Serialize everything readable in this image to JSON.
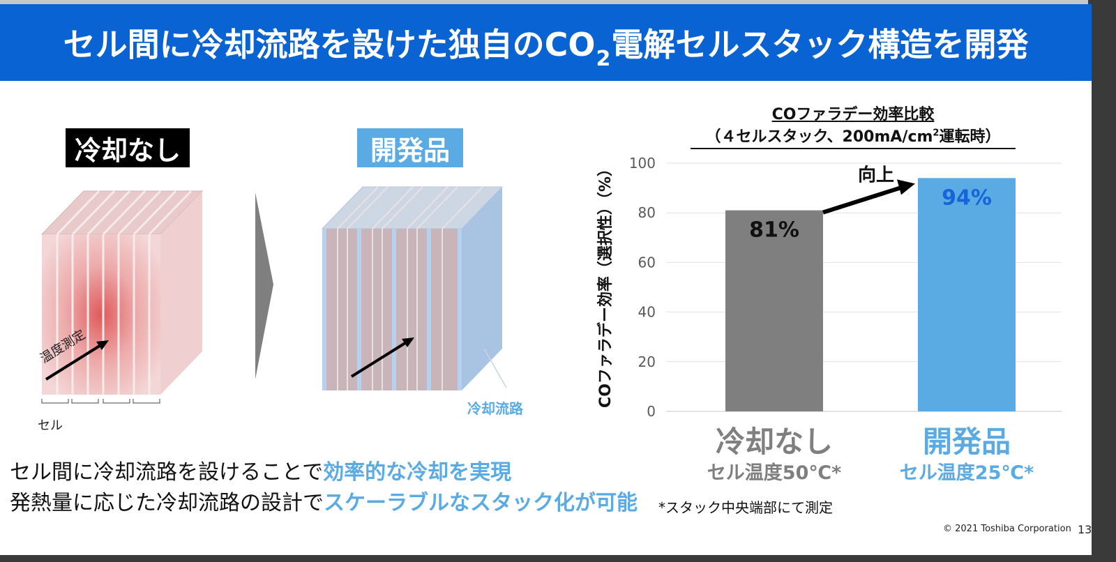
{
  "title": {
    "pre": "セル間に冷却流路を設けた独自のCO",
    "sub": "2",
    "post": "電解セルスタック構造を開発"
  },
  "labels": {
    "no_cooling": "冷却なし",
    "developed": "開発品"
  },
  "diagram": {
    "temp_measure": "温度測定",
    "cell": "セル",
    "cooling_channel": "冷却流路"
  },
  "body": {
    "line1_plain": "セル間に冷却流路を設けることで",
    "line1_highlight": "効率的な冷却を実現",
    "line2_plain": "発熱量に応じた冷却流路の設計で",
    "line2_highlight": "スケーラブルなスタック化が可能"
  },
  "chart_title": {
    "line1": "COファラデー効率比較",
    "line2_pre": "（４セルスタック、200mA/cm",
    "line2_sup": "2",
    "line2_post": "運転時）"
  },
  "chart_data": {
    "type": "bar",
    "categories": [
      "冷却なし",
      "開発品"
    ],
    "values": [
      81,
      94
    ],
    "value_labels": [
      "81%",
      "94%"
    ],
    "category_subtitles": [
      "セル温度50℃*",
      "セル温度25℃*"
    ],
    "ylabel": "COファラデー効率（選択性）（%）",
    "ylim": [
      0,
      100
    ],
    "yticks": [
      "0",
      "20",
      "40",
      "60",
      "80",
      "100"
    ],
    "annotation": "向上",
    "colors": [
      "#7f7f7f",
      "#5aaae4"
    ],
    "grid": true
  },
  "note": "*スタック中央端部にて測定",
  "footer": {
    "copyright": "© 2021 Toshiba Corporation",
    "page": "13"
  }
}
